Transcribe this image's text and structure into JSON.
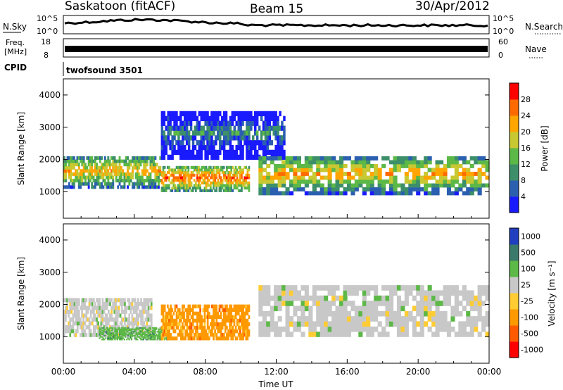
{
  "header": {
    "site": "Saskatoon (fitACF)",
    "beam": "Beam 15",
    "date": "30/Apr/2012"
  },
  "top_strip": {
    "nsky_label": "N.Sky",
    "nsky_ticks": [
      "10^5",
      "10^0"
    ],
    "nsearch_label": "N.Search",
    "nsearch_ticks": [
      "10^5",
      "10^0"
    ],
    "freq_label": "Freq.",
    "freq_unit": "[MHz]",
    "freq_ticks": [
      "18",
      "8"
    ],
    "nave_label": "Nave",
    "nave_ticks": [
      "60",
      "0"
    ],
    "cpid_label": "CPID",
    "cpid_value": "twofsound 3501"
  },
  "chart_data": [
    {
      "type": "heatmap",
      "name": "power",
      "ylabel": "Slant Range [km]",
      "ylim": [
        180,
        4500
      ],
      "yticks": [
        "1000",
        "2000",
        "3000",
        "4000"
      ],
      "xlim_hours": [
        0,
        24
      ],
      "colorbar_label": "Power [dB]",
      "colorbar_ticks": [
        "4",
        "8",
        "12",
        "16",
        "20",
        "24",
        "28"
      ],
      "colorbar_range": [
        0,
        32
      ],
      "colors": [
        "#1a1aff",
        "#2b5fb0",
        "#3d8f6a",
        "#5cb847",
        "#c8c832",
        "#ffa500",
        "#ff6a00",
        "#ff0000"
      ],
      "bands": [
        {
          "t0": 0.0,
          "t1": 5.5,
          "r0": 1100,
          "r1": 2100,
          "level": 20
        },
        {
          "t0": 5.5,
          "t1": 10.5,
          "r0": 1000,
          "r1": 1800,
          "level": 26
        },
        {
          "t0": 5.5,
          "t1": 12.5,
          "r0": 2000,
          "r1": 3500,
          "level": 8
        },
        {
          "t0": 11.0,
          "t1": 24.0,
          "r0": 900,
          "r1": 2100,
          "level": 22
        }
      ]
    },
    {
      "type": "heatmap",
      "name": "velocity",
      "ylabel": "Slant Range [km]",
      "ylim": [
        180,
        4500
      ],
      "yticks": [
        "1000",
        "2000",
        "3000",
        "4000"
      ],
      "xlim_hours": [
        0,
        24
      ],
      "xticks": [
        "00:00",
        "04:00",
        "08:00",
        "12:00",
        "16:00",
        "20:00",
        "00:00"
      ],
      "xlabel": "Time UT",
      "colorbar_label": "Velocity [m s⁻¹]",
      "colorbar_ticks": [
        "1000",
        "500",
        "100",
        "25",
        "-25",
        "-100",
        "-500",
        "-1000"
      ],
      "colors": [
        "#2040c0",
        "#3a7a6a",
        "#5cb847",
        "#c8c8c8",
        "#ffcc33",
        "#ff9900",
        "#ff5a00",
        "#ff0000"
      ],
      "bands": [
        {
          "t0": 0.0,
          "t1": 5.0,
          "r0": 1000,
          "r1": 2200,
          "level": "25"
        },
        {
          "t0": 2.0,
          "t1": 6.0,
          "r0": 900,
          "r1": 1300,
          "level": "100"
        },
        {
          "t0": 5.5,
          "t1": 10.5,
          "r0": 900,
          "r1": 2000,
          "level": "-100"
        },
        {
          "t0": 11.0,
          "t1": 24.0,
          "r0": 1000,
          "r1": 2600,
          "level": "25"
        }
      ]
    }
  ]
}
